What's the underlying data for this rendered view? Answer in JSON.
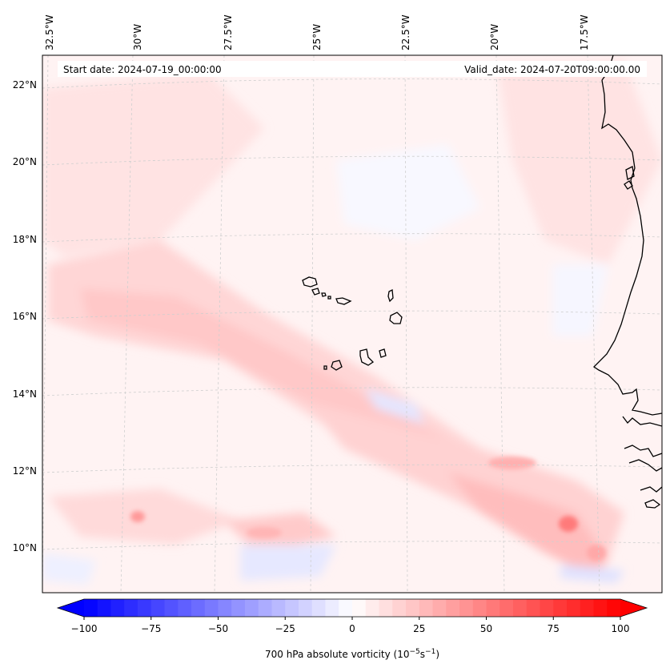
{
  "map": {
    "start_date": "Start date: 2024-07-19_00:00:00",
    "valid_date": "Valid_date: 2024-07-20T09:00:00.00",
    "lon_labels": [
      "32.5°W",
      "30°W",
      "27.5°W",
      "25°W",
      "22.5°W",
      "20°W",
      "17.5°W"
    ],
    "lat_labels": [
      "22°N",
      "20°N",
      "18°N",
      "16°N",
      "14°N",
      "12°N",
      "10°N"
    ],
    "gridlines": true
  },
  "colorbar": {
    "label": "700 hPa absolute vorticity (10",
    "label_exp1": "−5",
    "label_mid": "s",
    "label_exp2": "−1",
    "label_end": ")",
    "ticks": [
      "−100",
      "−75",
      "−50",
      "−25",
      "0",
      "25",
      "50",
      "75",
      "100"
    ],
    "range": [
      -100,
      100
    ],
    "step": 5,
    "colormap": "bwr",
    "negative_color": "#0000ff",
    "positive_color": "#ff0000",
    "extend": "both"
  },
  "colors": {
    "coastline": "#000000",
    "gridline": "#c8c8c8",
    "background_field": "#fff4f4"
  }
}
